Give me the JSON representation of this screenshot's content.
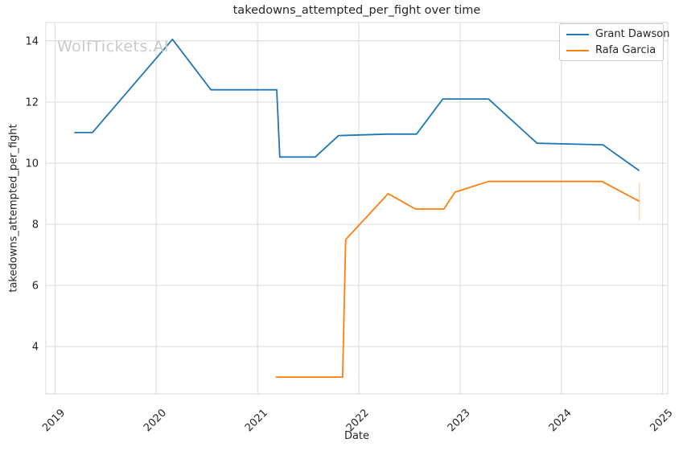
{
  "figure": {
    "watermark": "WolfTickets.AI"
  },
  "chart_data": {
    "type": "line",
    "title": "takedowns_attempted_per_fight over time",
    "xlabel": "Date",
    "ylabel": "takedowns_attempted_per_fight",
    "xlim": [
      2018.91,
      2025.05
    ],
    "ylim": [
      2.45,
      14.6
    ],
    "x_ticks": [
      2019,
      2020,
      2021,
      2022,
      2023,
      2024,
      2025
    ],
    "y_ticks": [
      4,
      6,
      8,
      10,
      12,
      14
    ],
    "grid": true,
    "legend_position": "upper right",
    "colors": {
      "grid": "#d9d9d9",
      "text": "#262626",
      "watermark": "#c9c9c9"
    },
    "series": [
      {
        "name": "Grant Dawson",
        "color": "#1f77b4",
        "points": [
          [
            2019.19,
            11.0
          ],
          [
            2019.37,
            11.0
          ],
          [
            2020.16,
            14.05
          ],
          [
            2020.54,
            12.4
          ],
          [
            2021.19,
            12.4
          ],
          [
            2021.22,
            10.2
          ],
          [
            2021.57,
            10.2
          ],
          [
            2021.8,
            10.9
          ],
          [
            2022.28,
            10.95
          ],
          [
            2022.57,
            10.95
          ],
          [
            2022.83,
            12.1
          ],
          [
            2023.28,
            12.1
          ],
          [
            2023.76,
            10.65
          ],
          [
            2024.41,
            10.6
          ],
          [
            2024.77,
            9.75
          ]
        ]
      },
      {
        "name": "Rafa Garcia",
        "color": "#ff7f0e",
        "points": [
          [
            2021.18,
            3.0
          ],
          [
            2021.84,
            3.0
          ],
          [
            2021.87,
            7.5
          ],
          [
            2022.29,
            9.0
          ],
          [
            2022.56,
            8.5
          ],
          [
            2022.84,
            8.5
          ],
          [
            2022.95,
            9.05
          ],
          [
            2023.28,
            9.4
          ],
          [
            2024.4,
            9.4
          ],
          [
            2024.77,
            8.75
          ]
        ],
        "end_error_bar": {
          "x": 2024.77,
          "y_min": 8.13,
          "y_max": 9.37
        }
      }
    ]
  }
}
